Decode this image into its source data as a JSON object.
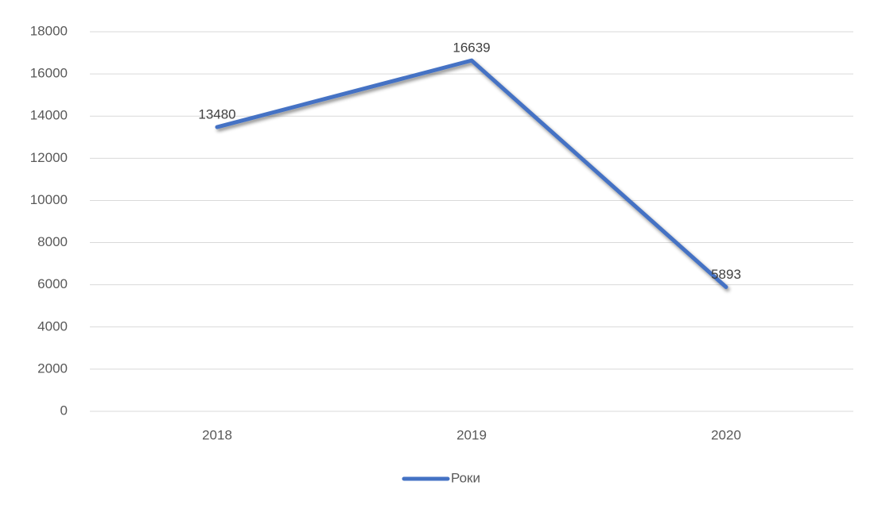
{
  "chart_data": {
    "type": "line",
    "categories": [
      "2018",
      "2019",
      "2020"
    ],
    "series": [
      {
        "name": "Роки",
        "color": "#4472c4",
        "values": [
          13480,
          16639,
          5893
        ]
      }
    ],
    "ylim": [
      0,
      18000
    ],
    "yticks": [
      0,
      2000,
      4000,
      6000,
      8000,
      10000,
      12000,
      14000,
      16000,
      18000
    ],
    "grid": true,
    "legend": "bottom",
    "data_labels": true
  }
}
